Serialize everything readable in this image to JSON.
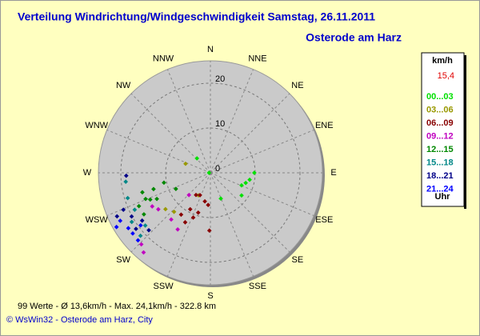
{
  "chart_data": {
    "type": "polar-scatter",
    "title": "Verteilung Windrichtung/Windgeschwindigkeit  Samstag, 26.11.2011",
    "subtitle": "Osterode am Harz",
    "directions": [
      "N",
      "NNE",
      "NE",
      "ENE",
      "E",
      "ESE",
      "SE",
      "SSE",
      "S",
      "SSW",
      "SW",
      "WSW",
      "W",
      "WNW",
      "NW",
      "NNW"
    ],
    "rlim": [
      0,
      25
    ],
    "rticks": [
      0,
      10,
      20
    ],
    "grid": true,
    "legend_title": "km/h",
    "current_speed": "15,4",
    "legend_footer": "Uhr",
    "series": [
      {
        "name": "00...03",
        "color": "#00e000",
        "theta": [
          317,
          90,
          100,
          106,
          112,
          126,
          158,
          270
        ],
        "values": [
          4.4,
          9.8,
          8.9,
          8.2,
          7.5,
          8.6,
          6.2,
          0.3
        ]
      },
      {
        "name": "03...06",
        "color": "#999900",
        "theta": [
          290,
          208,
          223,
          231
        ],
        "values": [
          5.9,
          5.7,
          11.9,
          12.9
        ]
      },
      {
        "name": "06...09",
        "color": "#880000",
        "theta": [
          213,
          205,
          191,
          184,
          181,
          209,
          201,
          207,
          215,
          197
        ],
        "values": [
          5.9,
          5.5,
          6.5,
          7.2,
          12.9,
          9.3,
          10.7,
          12.4,
          11.4,
          9.3
        ]
      },
      {
        "name": "09...12",
        "color": "#c000c0",
        "theta": [
          220,
          220,
          210,
          240,
          235,
          224,
          224
        ],
        "values": [
          23.2,
          13.6,
          14.6,
          15.0,
          14.2,
          22.2,
          6.9
        ]
      },
      {
        "name": "12...15",
        "color": "#008800",
        "theta": [
          254,
          248,
          246,
          244,
          254,
          245,
          238,
          258,
          245
        ],
        "values": [
          15.8,
          15.6,
          14.7,
          13.3,
          13.2,
          17.6,
          17.5,
          10.6,
          8.5
        ]
      },
      {
        "name": "15...18",
        "color": "#008888",
        "theta": [
          264,
          253,
          244,
          231,
          228,
          238
        ],
        "values": [
          19.0,
          19.3,
          18.8,
          18.7,
          21.0,
          20.7
        ]
      },
      {
        "name": "18...21",
        "color": "#000088",
        "theta": [
          268,
          247,
          241,
          233,
          245,
          227,
          235
        ],
        "values": [
          18.8,
          21.1,
          20.1,
          20.8,
          23.0,
          18.8,
          18.6
        ]
      },
      {
        "name": "21...24",
        "color": "#0000ff",
        "theta": [
          242,
          236,
          240,
          232,
          227,
          233
        ],
        "values": [
          22.8,
          22.1,
          24.2,
          22.0,
          22.1,
          19.5
        ]
      }
    ],
    "footer": "99 Werte  -  Ø 13,6km/h  -  Max. 24,1km/h  -  322.8 km",
    "copyright": "© WsWin32  -  Osterode am Harz, City"
  }
}
